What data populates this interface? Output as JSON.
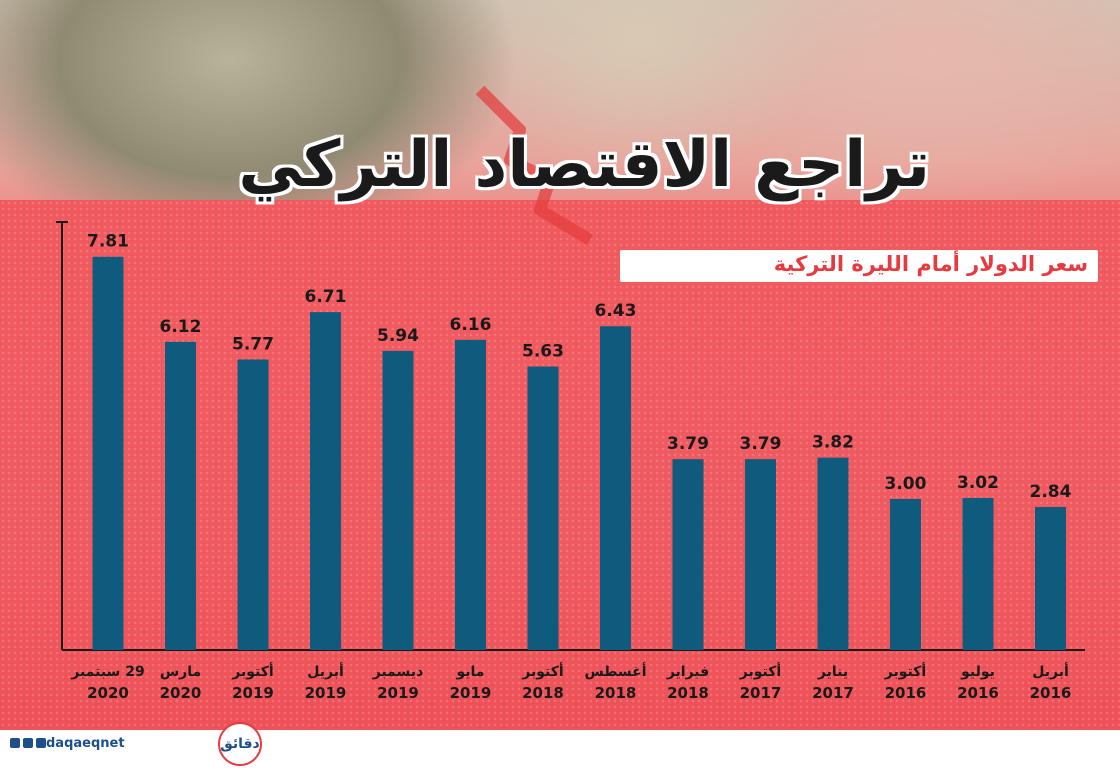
{
  "title": "تراجع الاقتصاد التركي",
  "subtitle": "سعر الدولار أمام الليرة التركية",
  "footer": {
    "handle": "daqaeqnet",
    "logo_text": "دقائق"
  },
  "colors": {
    "bar": "#0f5b7e",
    "background": "#ef5a60",
    "title": "#1a1a1a",
    "subtitle": "#e8393f"
  },
  "chart_data": {
    "type": "bar",
    "title": "تراجع الاقتصاد التركي",
    "subtitle": "سعر الدولار أمام الليرة التركية",
    "ylim": [
      0,
      8.5
    ],
    "grid": false,
    "categories": [
      {
        "month": "29 سبتمبر",
        "year": "2020"
      },
      {
        "month": "مارس",
        "year": "2020"
      },
      {
        "month": "أكتوبر",
        "year": "2019"
      },
      {
        "month": "أبريل",
        "year": "2019"
      },
      {
        "month": "ديسمبر",
        "year": "2019"
      },
      {
        "month": "مايو",
        "year": "2019"
      },
      {
        "month": "أكتوبر",
        "year": "2018"
      },
      {
        "month": "أغسطس",
        "year": "2018"
      },
      {
        "month": "فبراير",
        "year": "2018"
      },
      {
        "month": "أكتوبر",
        "year": "2017"
      },
      {
        "month": "يناير",
        "year": "2017"
      },
      {
        "month": "أكتوبر",
        "year": "2016"
      },
      {
        "month": "يوليو",
        "year": "2016"
      },
      {
        "month": "أبريل",
        "year": "2016"
      }
    ],
    "values": [
      7.81,
      6.12,
      5.77,
      6.71,
      5.94,
      6.16,
      5.63,
      6.43,
      3.79,
      3.79,
      3.82,
      3.0,
      3.02,
      2.84
    ],
    "labels": [
      "7.81",
      "6.12",
      "5.77",
      "6.71",
      "5.94",
      "6.16",
      "5.63",
      "6.43",
      "3.79",
      "3.79",
      "3.82",
      "3.00",
      "3.02",
      "2.84"
    ]
  }
}
